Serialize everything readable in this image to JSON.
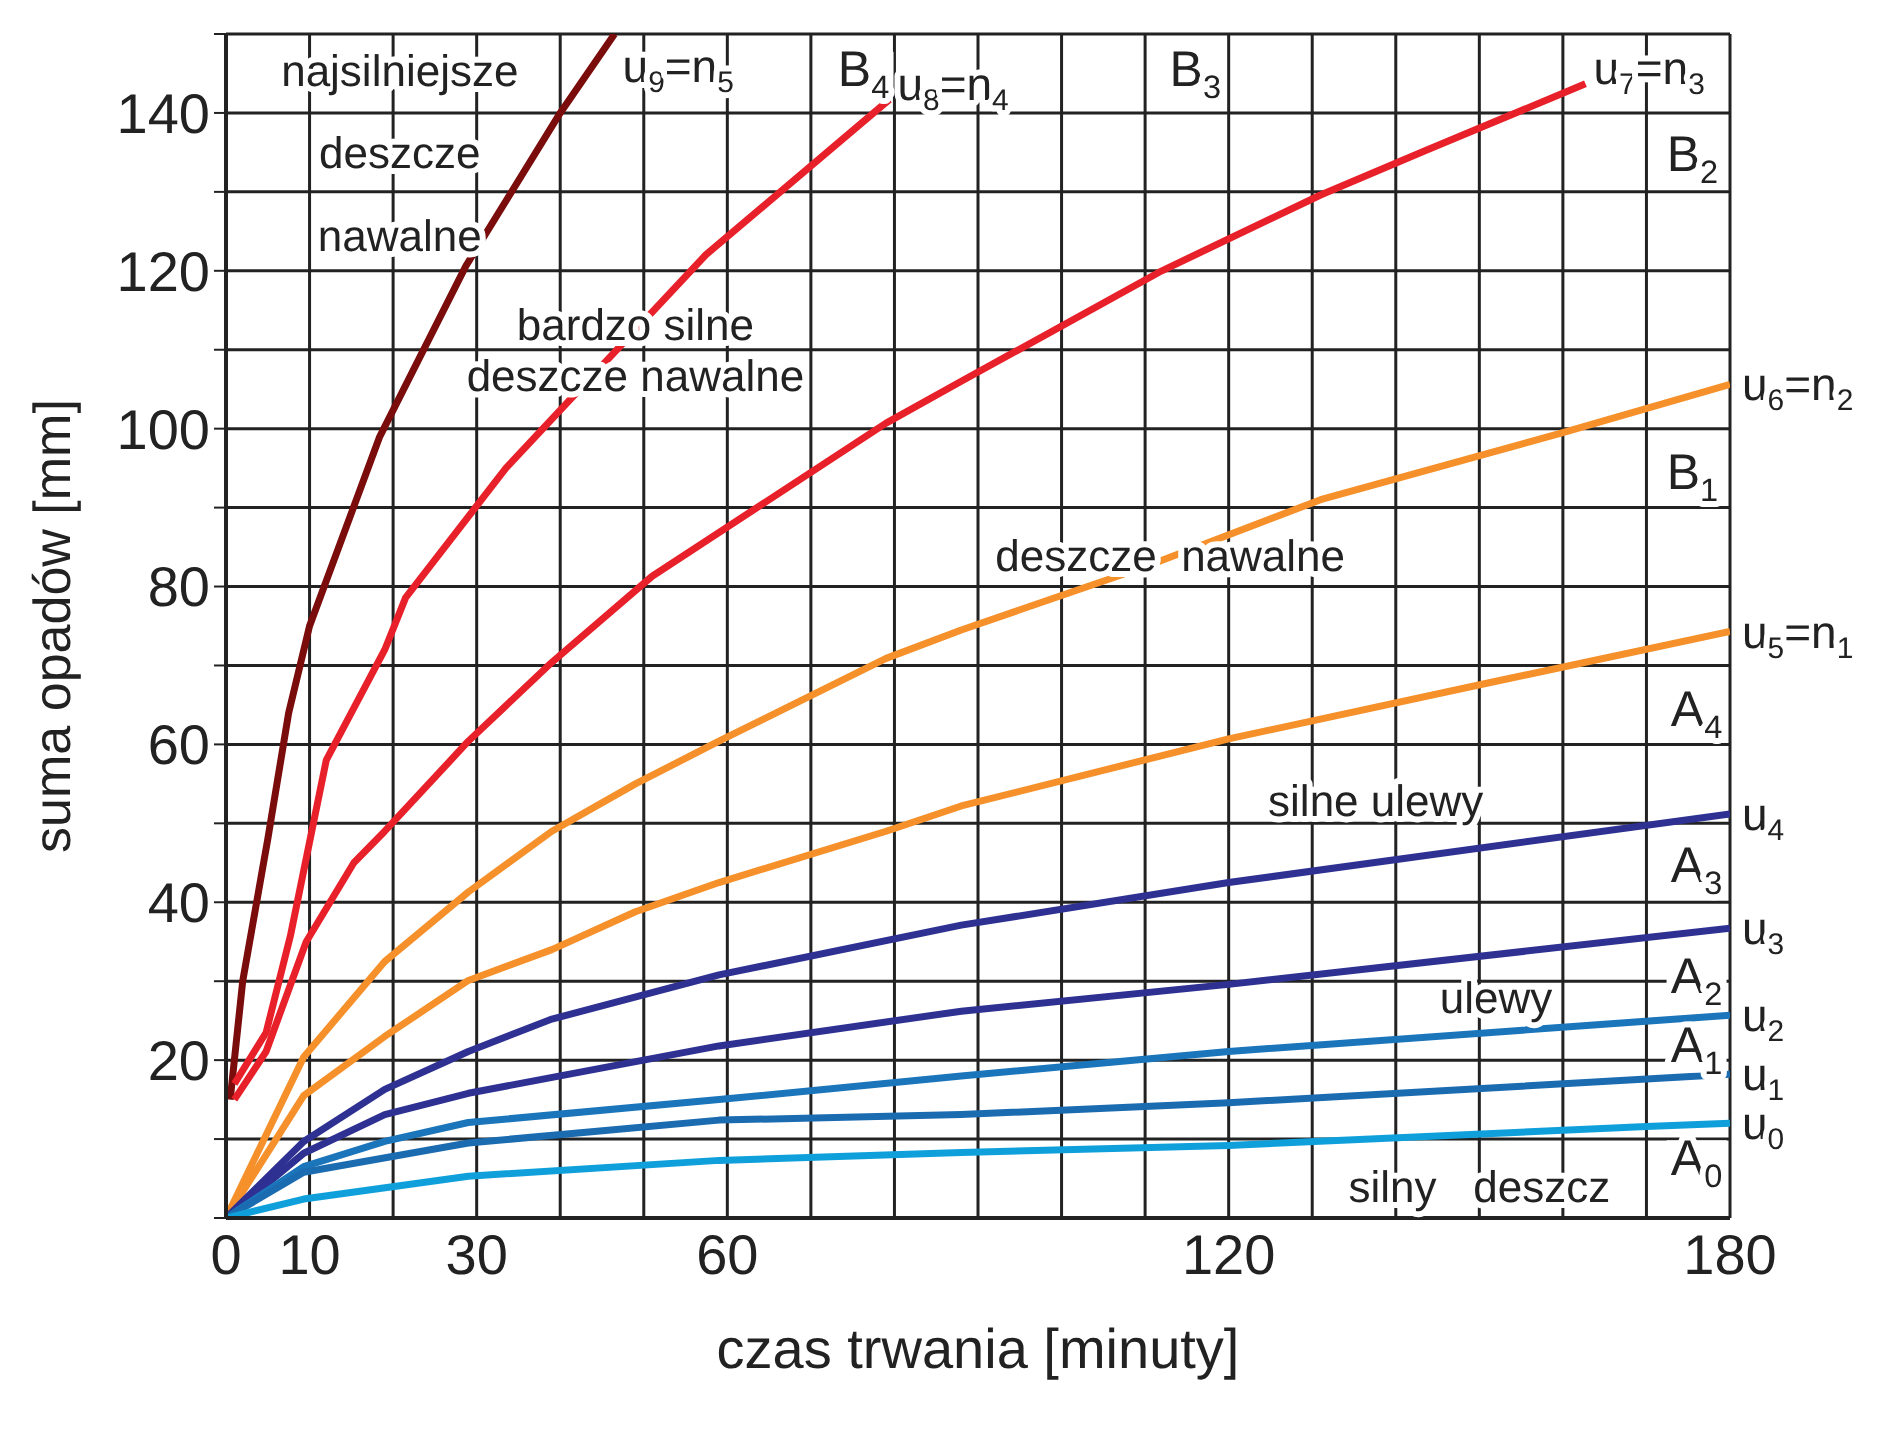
{
  "chart_data": {
    "type": "line",
    "xlabel": "czas trwania [minuty]",
    "ylabel": "suma opadów [mm]",
    "xlim": [
      0,
      180
    ],
    "ylim": [
      0,
      150
    ],
    "xticks": [
      0,
      10,
      {
        "value": 20,
        "label": null
      },
      30,
      {
        "value": 40,
        "label": null
      },
      {
        "value": 50,
        "label": null
      },
      60,
      {
        "value": 70,
        "label": null
      },
      {
        "value": 80,
        "label": null
      },
      {
        "value": 90,
        "label": null
      },
      {
        "value": 100,
        "label": null
      },
      {
        "value": 110,
        "label": null
      },
      120,
      {
        "value": 130,
        "label": null
      },
      {
        "value": 140,
        "label": null
      },
      {
        "value": 150,
        "label": null
      },
      {
        "value": 160,
        "label": null
      },
      {
        "value": 170,
        "label": null
      },
      180
    ],
    "yticks": [
      {
        "value": 0,
        "label": null
      },
      {
        "value": 10,
        "label": null
      },
      20,
      {
        "value": 30,
        "label": null
      },
      40,
      {
        "value": 50,
        "label": null
      },
      60,
      {
        "value": 70,
        "label": null
      },
      80,
      {
        "value": 90,
        "label": null
      },
      100,
      {
        "value": 110,
        "label": null
      },
      120,
      {
        "value": 130,
        "label": null
      },
      140,
      {
        "value": 150,
        "label": null
      }
    ],
    "grid": true,
    "series": [
      {
        "name": "u$_{9}$=n$_{5}$",
        "color": "#7a0c0c",
        "x": [
          0.5,
          2,
          5,
          7.5,
          10,
          18.4,
          28.7,
          40,
          46.5
        ],
        "values": [
          15,
          30,
          48,
          64,
          75,
          99,
          120.6,
          140,
          150
        ]
      },
      {
        "name": "u$_{8}$=n$_{4}$",
        "color": "#e8202a",
        "x": [
          1,
          4.8,
          7.7,
          12,
          19,
          21.5,
          33.5,
          57.4,
          79.4
        ],
        "values": [
          17,
          23.5,
          35.7,
          58,
          72,
          78.6,
          95,
          122,
          141.7
        ]
      },
      {
        "name": "u$_{7}$=n$_{3}$",
        "color": "#e8202a",
        "x": [
          1,
          4.8,
          9.6,
          15.3,
          19,
          29,
          39,
          51,
          79,
          88,
          112,
          131,
          143.5,
          162.7
        ],
        "values": [
          15,
          21.1,
          35,
          45,
          49,
          60.4,
          70.4,
          81.3,
          100.7,
          106,
          120,
          129.6,
          135.2,
          143.7
        ]
      },
      {
        "name": "u$_{6}$=n$_{2}$",
        "color": "#f5902a",
        "x": [
          0,
          9.3,
          19,
          29,
          39,
          49,
          59,
          79,
          88,
          110,
          131,
          160,
          180
        ],
        "values": [
          0,
          20.4,
          32.5,
          41.3,
          49,
          55,
          60.4,
          70.9,
          74.5,
          82.5,
          91,
          99.5,
          105.6
        ]
      },
      {
        "name": "u$_{5}$=n$_{1}$",
        "color": "#f5902a",
        "x": [
          0,
          9.3,
          19,
          29,
          39,
          49,
          59,
          79,
          88,
          120,
          152,
          180
        ],
        "values": [
          0,
          15.5,
          23,
          30.1,
          34,
          38.8,
          42.5,
          49,
          52.2,
          60.7,
          68,
          74.3
        ]
      },
      {
        "name": "u$_{4}$",
        "color": "#2e3192",
        "x": [
          0,
          9.3,
          19,
          29,
          39,
          59,
          88,
          120,
          180
        ],
        "values": [
          0,
          9.7,
          16.3,
          21.1,
          25.2,
          30.8,
          37.1,
          42.5,
          51.2
        ]
      },
      {
        "name": "u$_{3}$",
        "color": "#2e3192",
        "x": [
          0,
          9.3,
          19,
          29,
          59,
          88,
          120,
          180
        ],
        "values": [
          0,
          8.2,
          13.1,
          15.8,
          21.8,
          26.2,
          29.6,
          36.7
        ]
      },
      {
        "name": "u$_{2}$",
        "color": "#1b75bb",
        "x": [
          0,
          9.3,
          19,
          29,
          59,
          88,
          120,
          180
        ],
        "values": [
          0,
          6.5,
          9.7,
          12.1,
          15,
          18,
          21.1,
          25.7
        ]
      },
      {
        "name": "u$_{1}$",
        "color": "#1b6bb0",
        "x": [
          0,
          9.3,
          29,
          59,
          88,
          120,
          180
        ],
        "values": [
          0,
          5.8,
          9.5,
          12.4,
          13.1,
          14.6,
          18.2
        ]
      },
      {
        "name": "u$_{0}$",
        "color": "#0fa0dc",
        "x": [
          0,
          9.3,
          29,
          59,
          88,
          120,
          170,
          180
        ],
        "values": [
          0,
          2.4,
          5.3,
          7.3,
          8.3,
          9.2,
          11.6,
          12
        ]
      }
    ],
    "annotations": [
      "najsilniejsze\ndeszcze\nnawalne",
      "bardzo silne\ndeszcze nawalne",
      "deszcze  nawalne",
      "silne ulewy",
      "ulewy",
      "silny   deszcz",
      "B$_{4}$",
      "B$_{3}$",
      "B$_{2}$",
      "B$_{1}$",
      "A$_{4}$",
      "A$_{3}$",
      "A$_{2}$",
      "A$_{1}$",
      "A$_{0}$"
    ]
  }
}
